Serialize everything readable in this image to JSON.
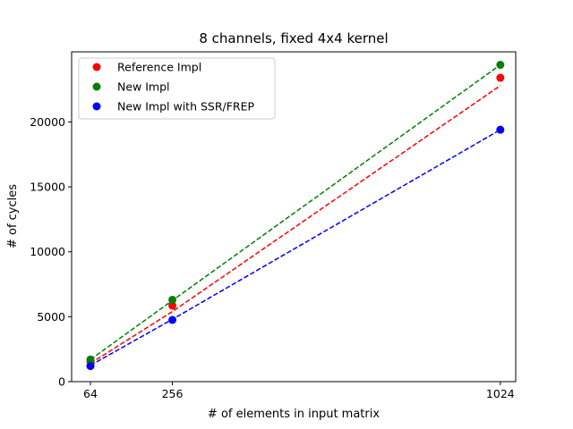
{
  "chart_data": {
    "type": "scatter",
    "title": "8 channels, fixed 4x4 kernel",
    "xlabel": "# of elements in input matrix",
    "ylabel": "# of cycles",
    "x": [
      64,
      256,
      1024
    ],
    "xticks": [
      64,
      256,
      1024
    ],
    "yticks": [
      0,
      5000,
      10000,
      15000,
      20000
    ],
    "xlim": [
      20,
      1060
    ],
    "ylim": [
      0,
      25400
    ],
    "grid": false,
    "legend_position": "top-left",
    "series": [
      {
        "name": "Reference Impl",
        "color": "#ff0000",
        "values": [
          1550,
          5850,
          23400
        ],
        "fit_line": [
          1400,
          5400,
          22800
        ]
      },
      {
        "name": "New Impl",
        "color": "#008000",
        "values": [
          1700,
          6300,
          24400
        ],
        "fit_line": [
          1700,
          6250,
          24400
        ]
      },
      {
        "name": "New Impl with SSR/FREP",
        "color": "#0000ff",
        "values": [
          1200,
          4750,
          19400
        ],
        "fit_line": [
          1250,
          4800,
          19400
        ]
      }
    ]
  }
}
